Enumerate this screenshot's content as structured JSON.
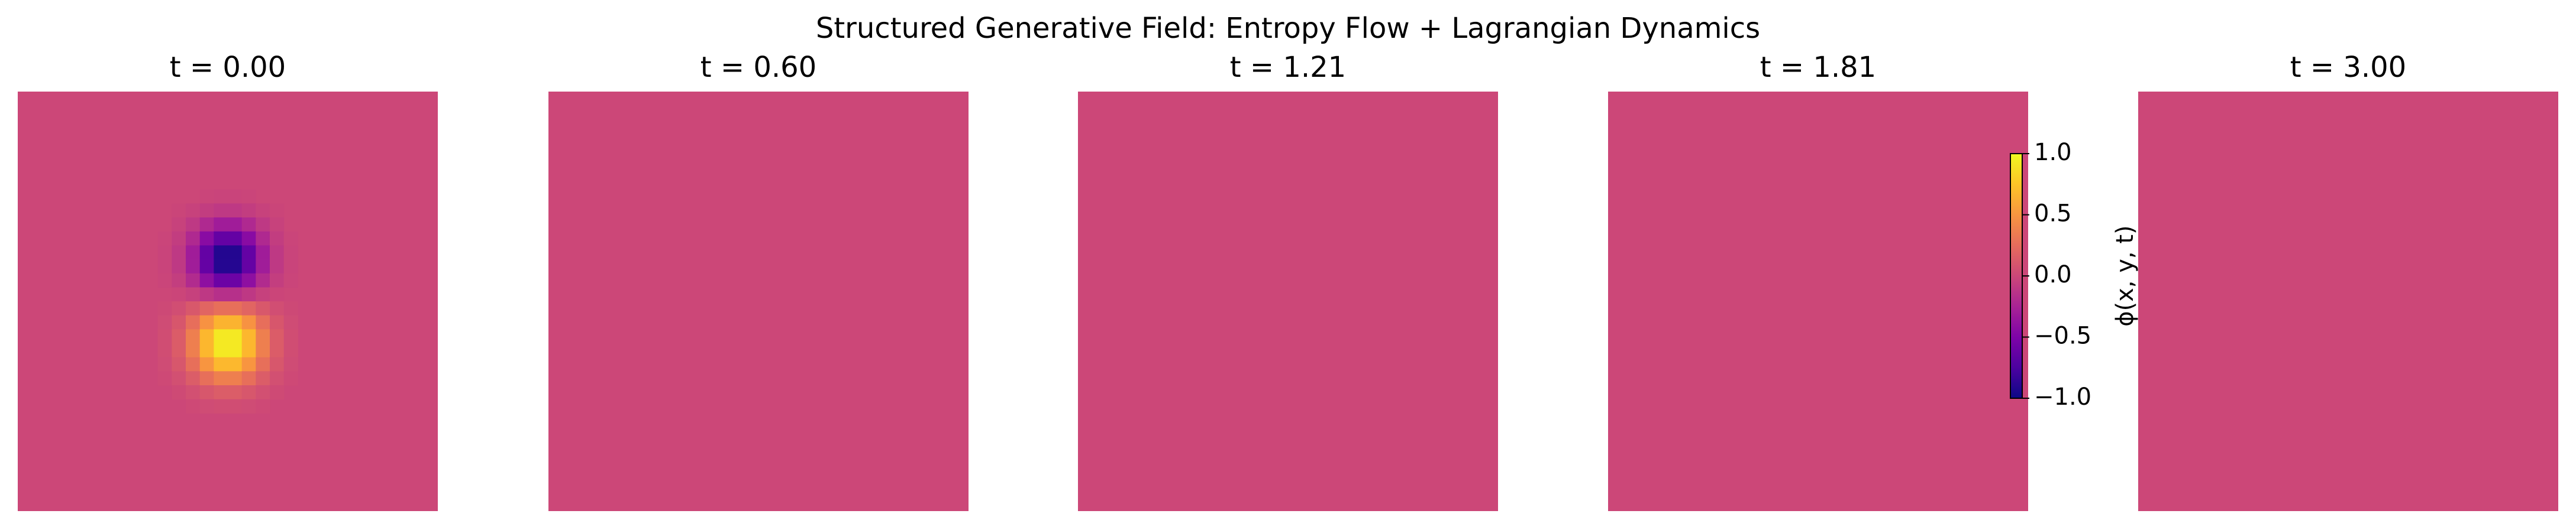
{
  "figure": {
    "suptitle": "Structured Generative Field: Entropy Flow + Lagrangian Dynamics"
  },
  "chart_data": {
    "type": "heatmap",
    "title": "Structured Generative Field: Entropy Flow + Lagrangian Dynamics",
    "colormap": "plasma",
    "grid": false,
    "axes_visible": false,
    "colorbar": {
      "label": "ϕ(x, y, t)",
      "vmin": -1.0,
      "vmax": 1.0,
      "ticks": [
        1.0,
        0.5,
        0.0,
        -0.5,
        -1.0
      ],
      "tick_labels": [
        "1.0",
        "0.5",
        "0.0",
        "−0.5",
        "−1.0"
      ]
    },
    "panels": [
      {
        "title": "t = 0.00",
        "background_value": 0.0,
        "features": [
          {
            "kind": "gaussian",
            "value": -1.0,
            "x": 0.5,
            "y": 0.4,
            "sigma": 0.055
          },
          {
            "kind": "gaussian",
            "value": 1.0,
            "x": 0.5,
            "y": 0.6,
            "sigma": 0.06
          }
        ]
      },
      {
        "title": "t = 0.60",
        "background_value": 0.0,
        "features": []
      },
      {
        "title": "t = 1.21",
        "background_value": 0.0,
        "features": []
      },
      {
        "title": "t = 1.81",
        "background_value": 0.0,
        "features": []
      },
      {
        "title": "t = 3.00",
        "background_value": 0.0,
        "features": []
      }
    ]
  }
}
